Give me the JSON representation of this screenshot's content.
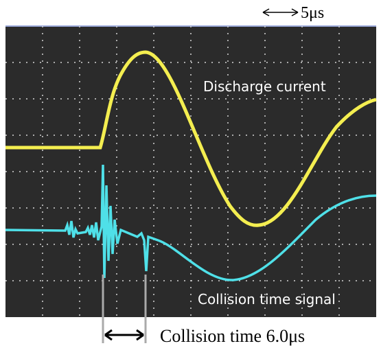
{
  "scale": "5μs",
  "traces": {
    "discharge": "Discharge current",
    "collision": "Collision time signal"
  },
  "annotation": "Collision time 6.0μs"
}
